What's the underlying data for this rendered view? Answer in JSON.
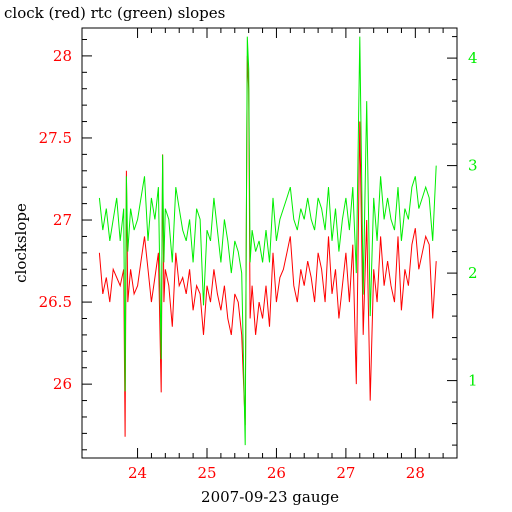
{
  "chart_data": {
    "type": "line",
    "title": "clock (red) rtc (green) slopes",
    "xlabel": "2007-09-23 gauge",
    "ylabel": "clockslope",
    "xlim": [
      23.2,
      28.6
    ],
    "ylim": [
      25.55,
      28.17
    ],
    "y2lim": [
      0.28,
      4.28
    ],
    "x_ticks": [
      24,
      25,
      26,
      27,
      28
    ],
    "x_tick_labels": [
      "24",
      "25",
      "26",
      "27",
      "28"
    ],
    "y_ticks": [
      26,
      26.5,
      27,
      27.5,
      28
    ],
    "y_tick_labels": [
      "26",
      "26.5",
      "27",
      "27.5",
      "28"
    ],
    "y2_ticks": [
      1,
      2,
      3,
      4
    ],
    "y2_tick_labels": [
      "1",
      "2",
      "3",
      "4"
    ],
    "grid": false,
    "colors": {
      "clock": "#ff0000",
      "rtc": "#00ee00",
      "axis": "#000000"
    },
    "series": [
      {
        "axis": "left",
        "color": "#ff0000",
        "x": [
          23.45,
          23.5,
          23.55,
          23.6,
          23.65,
          23.7,
          23.75,
          23.8,
          23.82,
          23.84,
          23.86,
          23.9,
          23.95,
          24.0,
          24.05,
          24.1,
          24.15,
          24.2,
          24.25,
          24.3,
          24.34,
          24.36,
          24.38,
          24.4,
          24.45,
          24.5,
          24.55,
          24.6,
          24.65,
          24.7,
          24.75,
          24.8,
          24.85,
          24.9,
          24.95,
          25.0,
          25.05,
          25.1,
          25.15,
          25.2,
          25.25,
          25.3,
          25.35,
          25.4,
          25.45,
          25.5,
          25.55,
          25.58,
          25.6,
          25.62,
          25.65,
          25.7,
          25.75,
          25.8,
          25.85,
          25.9,
          25.95,
          26.0,
          26.05,
          26.1,
          26.15,
          26.2,
          26.25,
          26.3,
          26.35,
          26.4,
          26.45,
          26.5,
          26.55,
          26.6,
          26.65,
          26.7,
          26.75,
          26.8,
          26.85,
          26.9,
          26.95,
          27.0,
          27.05,
          27.1,
          27.15,
          27.2,
          27.25,
          27.3,
          27.35,
          27.4,
          27.45,
          27.5,
          27.55,
          27.6,
          27.65,
          27.7,
          27.75,
          27.8,
          27.85,
          27.9,
          27.95,
          28.0,
          28.05,
          28.1,
          28.15,
          28.2,
          28.25,
          28.3
        ],
        "y": [
          26.8,
          26.55,
          26.65,
          26.5,
          26.7,
          26.65,
          26.6,
          26.7,
          25.68,
          27.3,
          26.5,
          26.7,
          26.55,
          26.6,
          26.75,
          26.9,
          26.7,
          26.5,
          26.65,
          26.8,
          25.95,
          27.4,
          26.5,
          26.7,
          26.6,
          26.35,
          26.8,
          26.6,
          26.65,
          26.55,
          26.7,
          26.45,
          26.6,
          26.55,
          26.3,
          26.6,
          26.5,
          26.7,
          26.55,
          26.45,
          26.6,
          26.4,
          26.3,
          26.55,
          26.5,
          26.3,
          25.75,
          28.0,
          27.8,
          26.4,
          26.6,
          26.3,
          26.5,
          26.4,
          26.6,
          26.35,
          26.8,
          26.5,
          26.65,
          26.7,
          26.8,
          26.9,
          26.6,
          26.5,
          26.7,
          26.6,
          26.75,
          26.65,
          26.5,
          26.8,
          26.7,
          26.5,
          26.9,
          26.55,
          26.7,
          26.4,
          26.6,
          26.8,
          26.5,
          26.85,
          26.0,
          27.6,
          26.3,
          27.0,
          25.9,
          26.7,
          26.5,
          26.9,
          26.6,
          26.75,
          26.6,
          26.5,
          26.9,
          26.45,
          26.7,
          26.6,
          26.85,
          26.95,
          26.7,
          26.8,
          26.9,
          26.85,
          26.4,
          26.75
        ]
      },
      {
        "axis": "right",
        "color": "#00ee00",
        "x": [
          23.45,
          23.5,
          23.55,
          23.6,
          23.65,
          23.7,
          23.75,
          23.8,
          23.82,
          23.84,
          23.86,
          23.9,
          23.95,
          24.0,
          24.05,
          24.1,
          24.15,
          24.2,
          24.25,
          24.3,
          24.34,
          24.36,
          24.38,
          24.4,
          24.45,
          24.5,
          24.55,
          24.6,
          24.65,
          24.7,
          24.75,
          24.8,
          24.85,
          24.9,
          24.95,
          25.0,
          25.05,
          25.1,
          25.15,
          25.2,
          25.25,
          25.3,
          25.35,
          25.4,
          25.45,
          25.5,
          25.55,
          25.58,
          25.6,
          25.62,
          25.65,
          25.7,
          25.75,
          25.8,
          25.85,
          25.9,
          25.95,
          26.0,
          26.05,
          26.1,
          26.15,
          26.2,
          26.25,
          26.3,
          26.35,
          26.4,
          26.45,
          26.5,
          26.55,
          26.6,
          26.65,
          26.7,
          26.75,
          26.8,
          26.85,
          26.9,
          26.95,
          27.0,
          27.05,
          27.1,
          27.15,
          27.2,
          27.25,
          27.3,
          27.35,
          27.4,
          27.45,
          27.5,
          27.55,
          27.6,
          27.65,
          27.7,
          27.75,
          27.8,
          27.85,
          27.9,
          27.95,
          28.0,
          28.05,
          28.1,
          28.15,
          28.2,
          28.25,
          28.3
        ],
        "y": [
          2.7,
          2.4,
          2.6,
          2.3,
          2.5,
          2.7,
          2.3,
          2.6,
          0.9,
          2.9,
          2.2,
          2.6,
          2.4,
          2.5,
          2.7,
          2.9,
          2.3,
          2.7,
          2.5,
          2.8,
          1.2,
          3.1,
          2.1,
          2.6,
          2.5,
          2.1,
          2.8,
          2.6,
          2.4,
          2.3,
          2.5,
          2.1,
          2.6,
          2.5,
          1.7,
          2.4,
          2.3,
          2.7,
          2.4,
          2.1,
          2.5,
          2.3,
          2.0,
          2.3,
          2.2,
          2.0,
          0.4,
          4.2,
          3.9,
          2.1,
          2.4,
          2.2,
          2.3,
          2.1,
          2.4,
          2.1,
          2.7,
          2.3,
          2.5,
          2.6,
          2.7,
          2.8,
          2.5,
          2.4,
          2.6,
          2.5,
          2.7,
          2.5,
          2.4,
          2.7,
          2.6,
          2.4,
          2.8,
          2.3,
          2.6,
          2.2,
          2.5,
          2.7,
          2.4,
          2.8,
          2.0,
          4.2,
          1.8,
          3.6,
          1.6,
          2.7,
          2.3,
          2.9,
          2.5,
          2.7,
          2.5,
          2.4,
          2.8,
          2.3,
          2.6,
          2.5,
          2.8,
          2.9,
          2.6,
          2.7,
          2.8,
          2.7,
          2.3,
          3.0
        ]
      }
    ]
  }
}
